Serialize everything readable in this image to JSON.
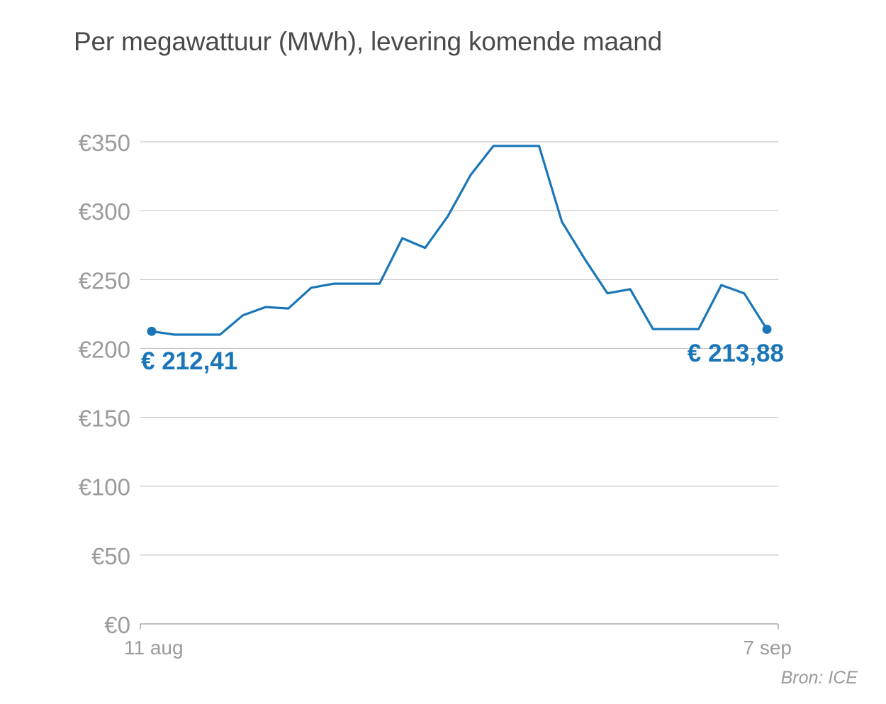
{
  "chart_data": {
    "type": "line",
    "title": "Per megawattuur (MWh), levering komende maand",
    "source": "Bron: ICE",
    "y_ticks": [
      0,
      50,
      100,
      150,
      200,
      250,
      300,
      350
    ],
    "y_tick_labels": [
      "€0",
      "€50",
      "€100",
      "€150",
      "€200",
      "€250",
      "€300",
      "€350"
    ],
    "ylim": [
      0,
      350
    ],
    "x_tick_labels": [
      "11 aug",
      "7 sep"
    ],
    "grid": true,
    "series": [
      {
        "color": "#1a76b8",
        "values": [
          212.41,
          210,
          210,
          210,
          224,
          230,
          229,
          244,
          247,
          247,
          247,
          280,
          273,
          296,
          326,
          347,
          347,
          347,
          292,
          265,
          240,
          243,
          214,
          214,
          214,
          246,
          240,
          213.88
        ]
      }
    ],
    "annotations": [
      {
        "point": "first",
        "label": "€ 212,41"
      },
      {
        "point": "last",
        "label": "€ 213,88"
      }
    ]
  }
}
